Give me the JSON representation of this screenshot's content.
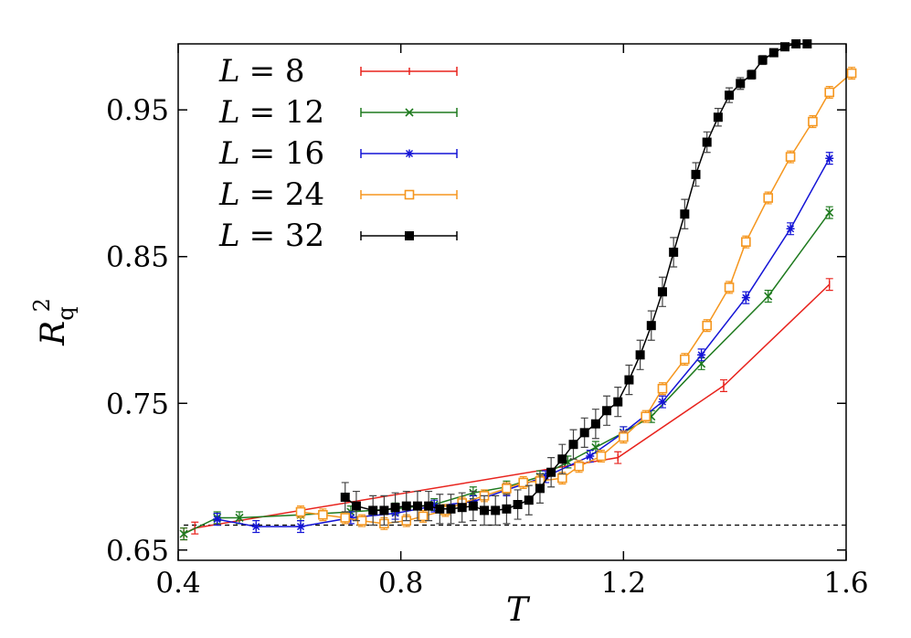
{
  "chart_data": {
    "type": "line",
    "xlabel": "T",
    "ylabel": {
      "main": "R",
      "sub": "q",
      "sup": "2"
    },
    "xlim": [
      0.4,
      1.6
    ],
    "ylim": [
      0.643,
      0.995
    ],
    "xticks": [
      0.4,
      0.8,
      1.2,
      1.6
    ],
    "xtick_labels": [
      "0.4",
      "0.8",
      "1.2",
      "1.6"
    ],
    "yticks": [
      0.65,
      0.75,
      0.85,
      0.95
    ],
    "ytick_labels": [
      "0.65",
      "0.75",
      "0.85",
      "0.95"
    ],
    "grid": false,
    "legend_position": "top-left",
    "reference_line": {
      "y": 0.667,
      "style": "dashed",
      "color": "#000000"
    },
    "series": [
      {
        "name": "L = 8",
        "legend": {
          "var": "L",
          "eq": "= 8"
        },
        "color": "#e8231d",
        "marker": "tick",
        "x": [
          0.41,
          0.43,
          1.19,
          1.38,
          1.57
        ],
        "y": [
          0.661,
          0.665,
          0.713,
          0.762,
          0.831
        ],
        "err": [
          0.004,
          0.004,
          0.004,
          0.004,
          0.004
        ]
      },
      {
        "name": "L = 12",
        "legend": {
          "var": "L",
          "eq": "= 12"
        },
        "color": "#1e7a1e",
        "marker": "x",
        "x": [
          0.41,
          0.47,
          0.51,
          0.62,
          0.71,
          0.79,
          0.86,
          0.93,
          0.99,
          1.05,
          1.1,
          1.15,
          1.2,
          1.25,
          1.34,
          1.46,
          1.57
        ],
        "y": [
          0.661,
          0.672,
          0.672,
          0.674,
          0.676,
          0.678,
          0.681,
          0.689,
          0.693,
          0.7,
          0.71,
          0.72,
          0.73,
          0.741,
          0.777,
          0.823,
          0.88
        ],
        "err": [
          0.004,
          0.004,
          0.004,
          0.004,
          0.004,
          0.004,
          0.004,
          0.004,
          0.004,
          0.004,
          0.004,
          0.004,
          0.004,
          0.004,
          0.004,
          0.004,
          0.004
        ]
      },
      {
        "name": "L = 16",
        "legend": {
          "var": "L",
          "eq": "= 16"
        },
        "color": "#1414d6",
        "marker": "star",
        "x": [
          0.47,
          0.54,
          0.62,
          0.71,
          0.79,
          0.86,
          0.93,
          0.99,
          1.06,
          1.14,
          1.2,
          1.27,
          1.34,
          1.42,
          1.5,
          1.57
        ],
        "y": [
          0.671,
          0.666,
          0.666,
          0.672,
          0.675,
          0.68,
          0.683,
          0.691,
          0.7,
          0.714,
          0.73,
          0.751,
          0.783,
          0.822,
          0.869,
          0.917
        ],
        "err": [
          0.004,
          0.004,
          0.004,
          0.004,
          0.004,
          0.004,
          0.004,
          0.004,
          0.004,
          0.004,
          0.004,
          0.004,
          0.004,
          0.004,
          0.004,
          0.004
        ]
      },
      {
        "name": "L = 24",
        "legend": {
          "var": "L",
          "eq": "= 24"
        },
        "color": "#f5961e",
        "marker": "open-square",
        "x": [
          0.62,
          0.66,
          0.7,
          0.73,
          0.77,
          0.81,
          0.84,
          0.88,
          0.91,
          0.95,
          0.99,
          1.02,
          1.05,
          1.09,
          1.12,
          1.16,
          1.2,
          1.24,
          1.27,
          1.31,
          1.35,
          1.39,
          1.42,
          1.46,
          1.5,
          1.54,
          1.57,
          1.61
        ],
        "y": [
          0.676,
          0.674,
          0.672,
          0.67,
          0.668,
          0.67,
          0.673,
          0.677,
          0.682,
          0.687,
          0.692,
          0.696,
          0.697,
          0.699,
          0.707,
          0.714,
          0.727,
          0.741,
          0.76,
          0.78,
          0.803,
          0.829,
          0.86,
          0.89,
          0.918,
          0.942,
          0.962,
          0.975
        ],
        "err": [
          0.004,
          0.004,
          0.004,
          0.004,
          0.004,
          0.004,
          0.004,
          0.004,
          0.004,
          0.004,
          0.004,
          0.004,
          0.004,
          0.004,
          0.004,
          0.004,
          0.004,
          0.004,
          0.004,
          0.004,
          0.004,
          0.004,
          0.004,
          0.004,
          0.004,
          0.004,
          0.004,
          0.004
        ]
      },
      {
        "name": "L = 32",
        "legend": {
          "var": "L",
          "eq": "= 32"
        },
        "color": "#000000",
        "marker": "filled-square",
        "x": [
          0.7,
          0.72,
          0.75,
          0.77,
          0.79,
          0.81,
          0.83,
          0.85,
          0.87,
          0.89,
          0.91,
          0.93,
          0.95,
          0.97,
          0.99,
          1.01,
          1.03,
          1.05,
          1.07,
          1.09,
          1.11,
          1.13,
          1.15,
          1.17,
          1.19,
          1.21,
          1.23,
          1.25,
          1.27,
          1.29,
          1.31,
          1.33,
          1.35,
          1.37,
          1.39,
          1.41,
          1.43,
          1.45,
          1.47,
          1.49,
          1.51,
          1.53
        ],
        "y": [
          0.686,
          0.68,
          0.677,
          0.677,
          0.679,
          0.68,
          0.68,
          0.68,
          0.678,
          0.678,
          0.679,
          0.68,
          0.677,
          0.677,
          0.678,
          0.681,
          0.684,
          0.692,
          0.703,
          0.712,
          0.722,
          0.73,
          0.736,
          0.745,
          0.751,
          0.766,
          0.783,
          0.803,
          0.826,
          0.853,
          0.879,
          0.906,
          0.928,
          0.945,
          0.96,
          0.968,
          0.974,
          0.984,
          0.989,
          0.993,
          0.995,
          0.995
        ],
        "err": [
          0.01,
          0.01,
          0.01,
          0.01,
          0.01,
          0.01,
          0.01,
          0.01,
          0.01,
          0.01,
          0.01,
          0.01,
          0.01,
          0.01,
          0.01,
          0.01,
          0.01,
          0.01,
          0.01,
          0.01,
          0.01,
          0.01,
          0.01,
          0.01,
          0.01,
          0.01,
          0.01,
          0.01,
          0.01,
          0.01,
          0.01,
          0.008,
          0.007,
          0.006,
          0.005,
          0.004,
          0.003,
          0.003,
          0.002,
          0.002,
          0.001,
          0.001
        ]
      }
    ]
  }
}
